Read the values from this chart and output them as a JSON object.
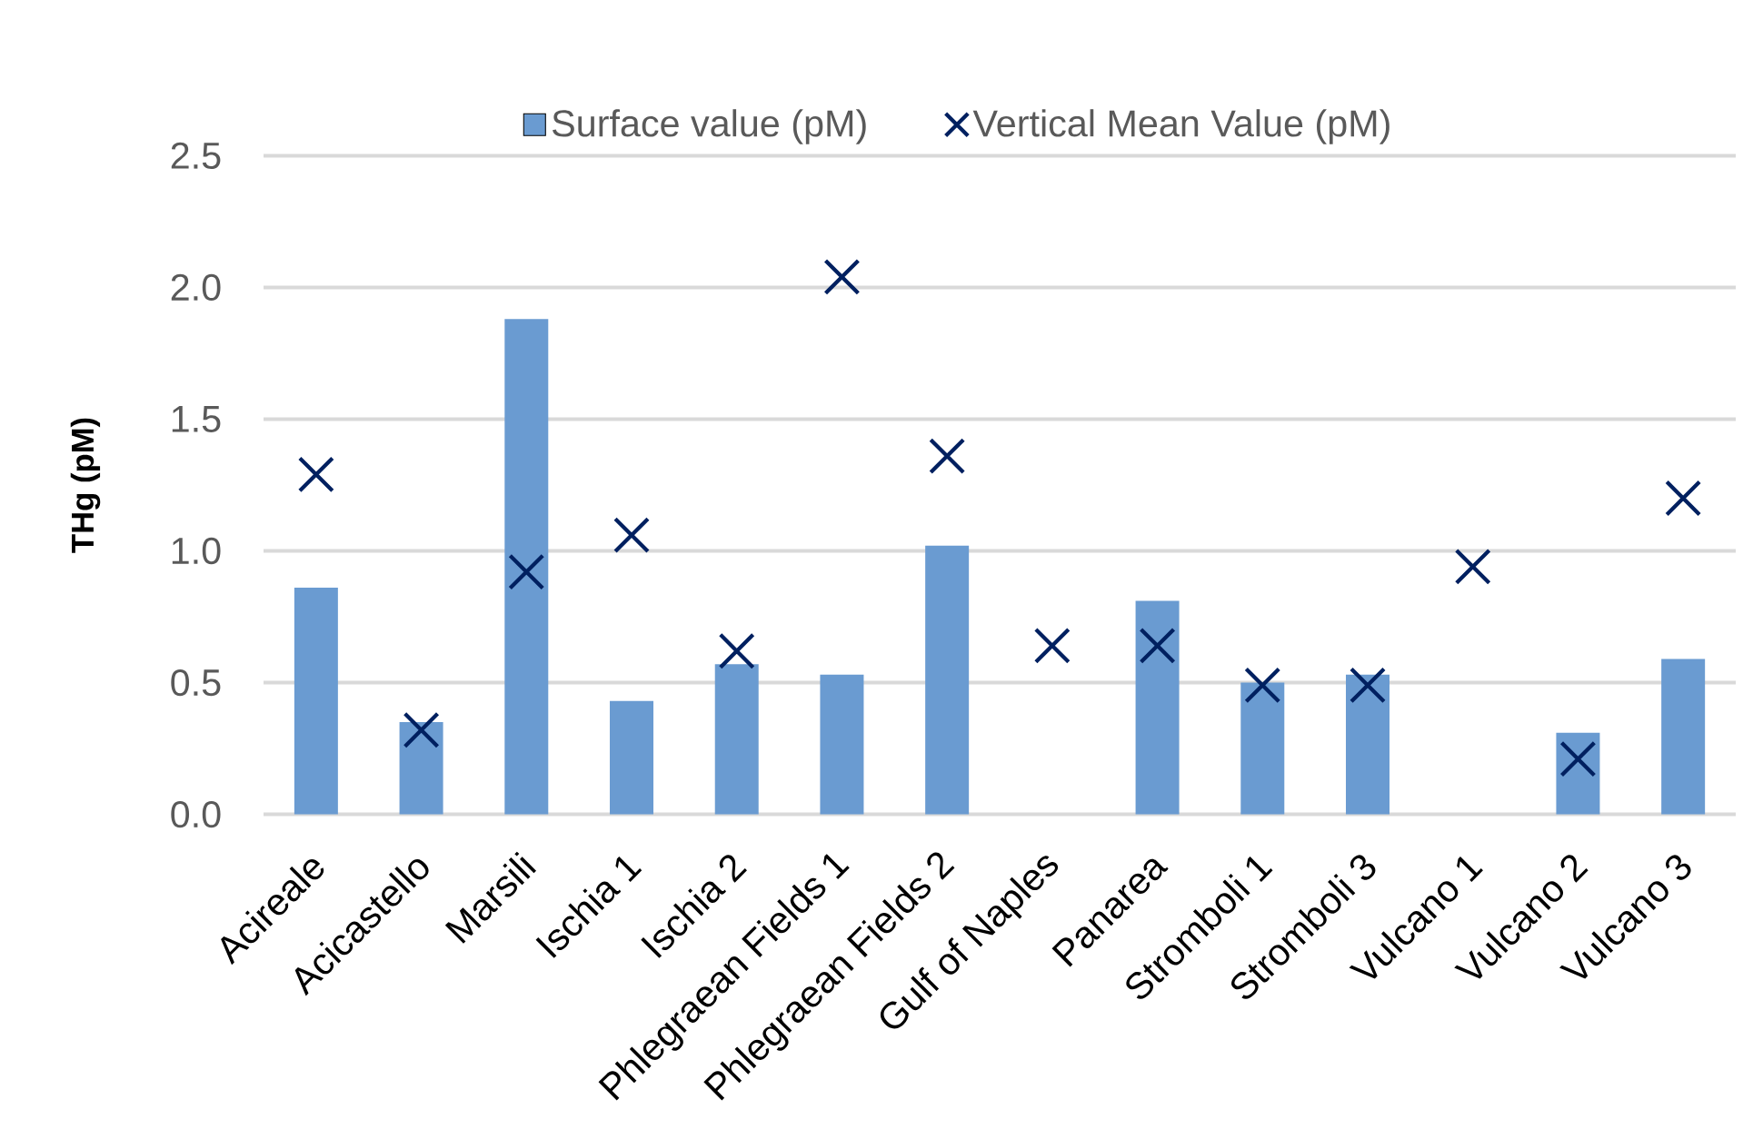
{
  "chart_data": {
    "type": "bar",
    "ylabel": "THg (pM)",
    "categories": [
      "Acireale",
      "Acicastello",
      "Marsili",
      "Ischia 1",
      "Ischia 2",
      "Phlegraean Fields 1",
      "Phlegraean Fields 2",
      "Gulf of Naples",
      "Panarea",
      "Stromboli 1",
      "Stromboli 3",
      "Vulcano 1",
      "Vulcano 2",
      "Vulcano 3"
    ],
    "series": [
      {
        "name": "Surface value (pM)",
        "color": "#6a9bd1",
        "values": [
          0.86,
          0.35,
          1.88,
          0.43,
          0.57,
          0.53,
          1.02,
          null,
          0.81,
          0.5,
          0.53,
          null,
          0.31,
          0.59
        ]
      },
      {
        "name": "Vertical Mean Value (pM)",
        "type": "scatter",
        "marker": "cross",
        "color": "#002060",
        "values": [
          1.29,
          0.32,
          0.92,
          1.06,
          0.62,
          2.04,
          1.36,
          0.64,
          0.64,
          0.49,
          0.49,
          0.94,
          0.21,
          1.2
        ]
      }
    ],
    "ylim": [
      0,
      2.5
    ],
    "yticks": [
      {
        "value": 0,
        "label": "0.0"
      },
      0.5,
      {
        "value": 1,
        "label": "1.0"
      },
      1.5,
      {
        "value": 2,
        "label": "2.0"
      },
      2.5
    ],
    "grid": "y",
    "legend": "top"
  }
}
